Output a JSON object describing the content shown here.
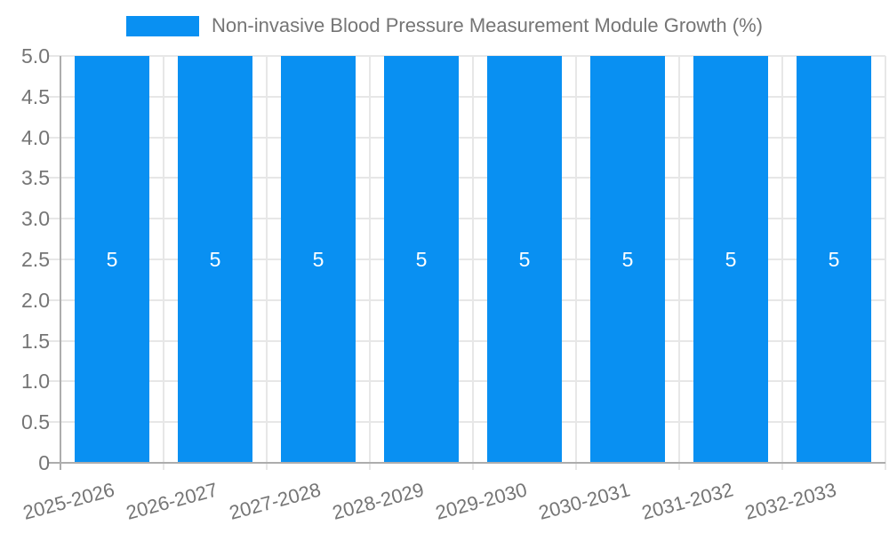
{
  "legend": {
    "label": "Non-invasive Blood Pressure Measurement Module Growth (%)"
  },
  "chart_data": {
    "type": "bar",
    "title": "Non-invasive Blood Pressure Measurement Module Growth (%)",
    "categories": [
      "2025-2026",
      "2026-2027",
      "2027-2028",
      "2028-2029",
      "2029-2030",
      "2030-2031",
      "2031-2032",
      "2032-2033"
    ],
    "values": [
      5,
      5,
      5,
      5,
      5,
      5,
      5,
      5
    ],
    "bar_labels": [
      "5",
      "5",
      "5",
      "5",
      "5",
      "5",
      "5",
      "5"
    ],
    "xlabel": "",
    "ylabel": "",
    "ylim": [
      0,
      5
    ],
    "ytick_step": 0.5,
    "ytick_labels": [
      "0",
      "0.5",
      "1.0",
      "1.5",
      "2.0",
      "2.5",
      "3.0",
      "3.5",
      "4.0",
      "4.5",
      "5.0"
    ],
    "grid": true,
    "legend_position": "top",
    "bar_color": "#0990f2",
    "bar_label_color": "#ffffff",
    "axis_line_color": "#adadad",
    "gridline_color": "#e7e7e7",
    "tick_label_color": "#757575",
    "background_color": "#ffffff"
  }
}
